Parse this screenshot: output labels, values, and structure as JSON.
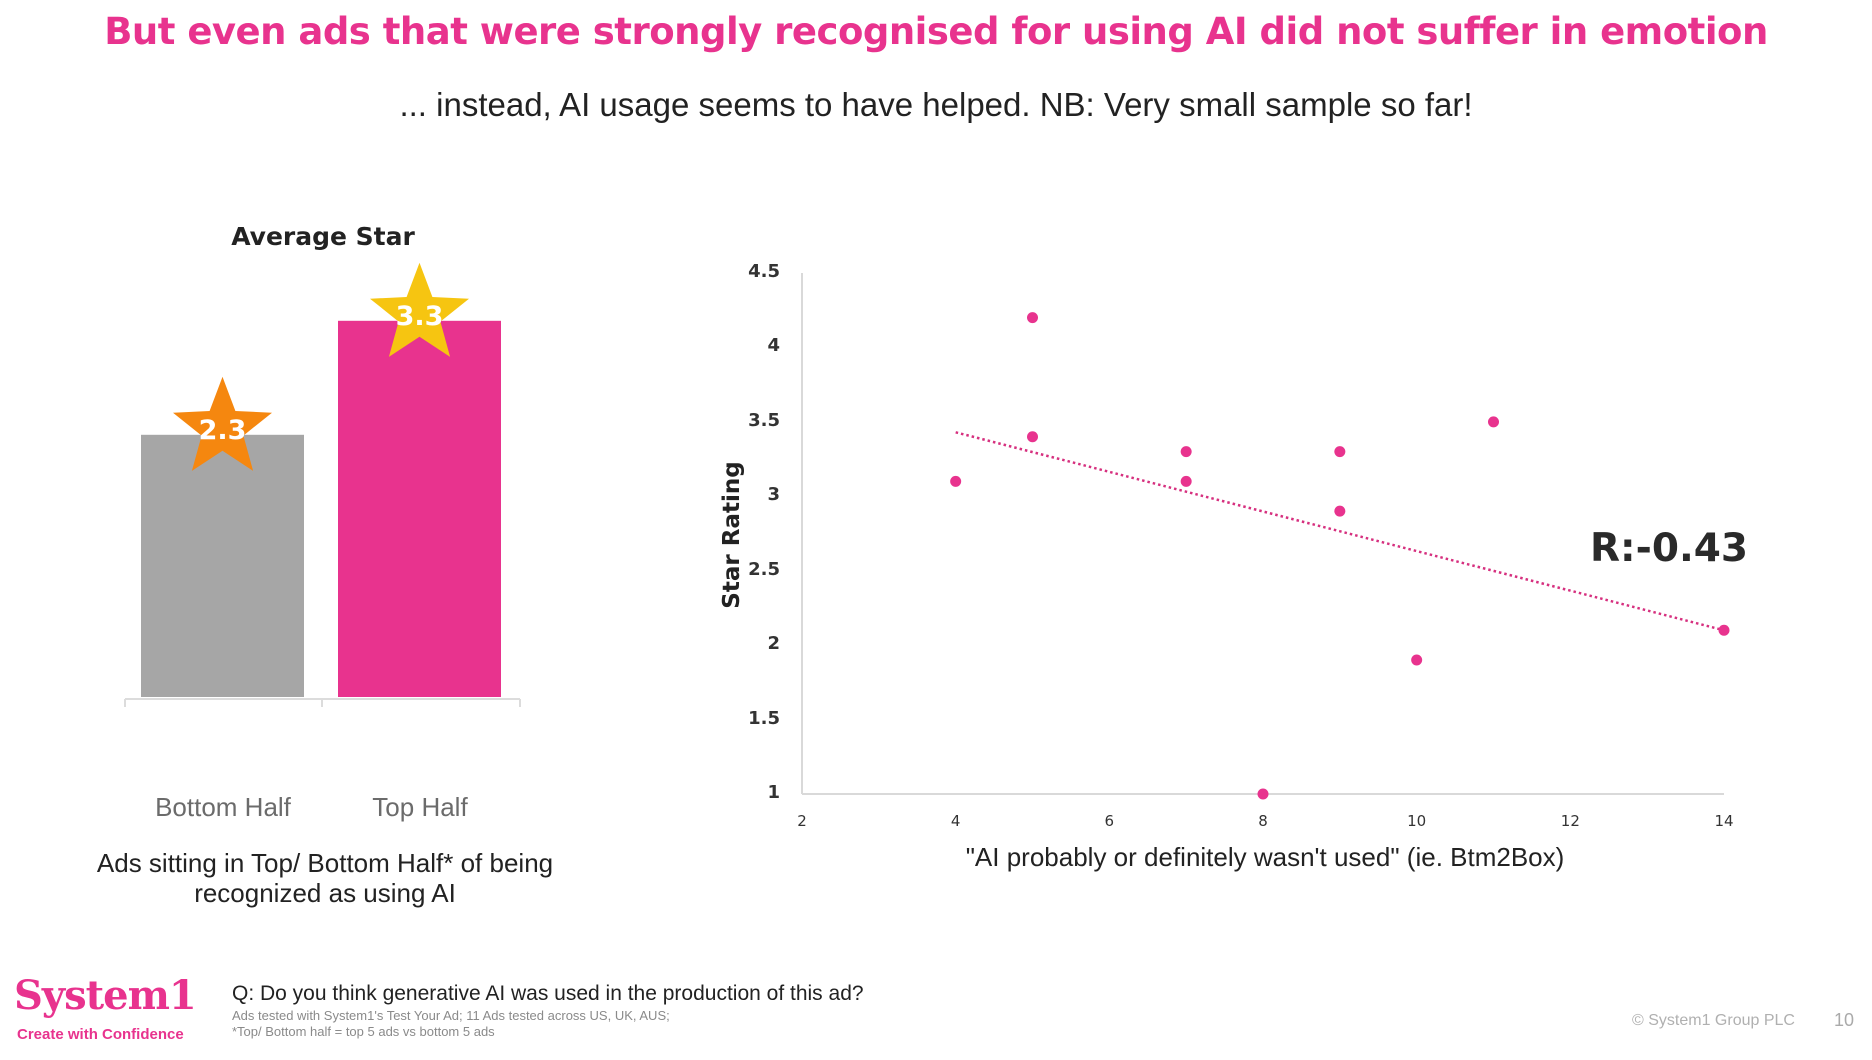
{
  "slide": {
    "title": "But even ads that were strongly recognised for using AI did not suffer in emotion",
    "subtitle": "... instead, AI usage seems to have helped. NB: Very small sample so far!",
    "page_number": "10",
    "copyright": "© System1 Group PLC"
  },
  "footer": {
    "logo": "System1",
    "tagline": "Create with Confidence",
    "question": "Q: Do you think generative AI was used in the production of this ad?",
    "notes": [
      "Ads tested with System1's Test Your Ad; 11 Ads tested across US, UK, AUS;",
      "*Top/ Bottom half = top 5 ads vs bottom 5 ads"
    ]
  },
  "colors": {
    "brand_pink": "#e8338e",
    "bar_gray": "#a6a6a6",
    "star_orange": "#f5870f",
    "star_gold": "#f6c511",
    "text_dark": "#222222"
  },
  "chart_data": [
    {
      "type": "bar",
      "title": "Average Star",
      "categories": [
        "Bottom Half",
        "Top Half"
      ],
      "values": [
        2.3,
        3.3
      ],
      "value_labels": [
        "2.3",
        "3.3"
      ],
      "bar_colors": [
        "#a6a6a6",
        "#e8338e"
      ],
      "label_style": "star-icon",
      "star_colors": [
        "#f5870f",
        "#f6c511"
      ],
      "xlabel": "Ads sitting in Top/ Bottom Half* of being recognized as using AI",
      "ylabel": "",
      "grid": false
    },
    {
      "type": "scatter",
      "title": "",
      "xlabel": "\"AI probably or definitely wasn't used\" (ie. Btm2Box)",
      "ylabel": "Star Rating",
      "xlim": [
        2,
        14
      ],
      "ylim": [
        1,
        4.5
      ],
      "x_ticks": [
        "2",
        "4",
        "6",
        "8",
        "10",
        "12",
        "14"
      ],
      "y_ticks": [
        "4.5",
        "4",
        "3.5",
        "3",
        "2.5",
        "2",
        "1.5",
        "1"
      ],
      "grid": false,
      "points": [
        {
          "x": 4,
          "y": 3.1
        },
        {
          "x": 5,
          "y": 4.2
        },
        {
          "x": 5,
          "y": 3.4
        },
        {
          "x": 7,
          "y": 3.3
        },
        {
          "x": 7,
          "y": 3.1
        },
        {
          "x": 8,
          "y": 1.0
        },
        {
          "x": 9,
          "y": 3.3
        },
        {
          "x": 9,
          "y": 2.9
        },
        {
          "x": 10,
          "y": 1.9
        },
        {
          "x": 11,
          "y": 3.5
        },
        {
          "x": 14,
          "y": 2.1
        }
      ],
      "point_color": "#e8338e",
      "trendline": {
        "style": "dotted",
        "x0": 4,
        "y0": 3.43,
        "x1": 14,
        "y1": 2.1
      },
      "annotation": "R:-0.43"
    }
  ]
}
